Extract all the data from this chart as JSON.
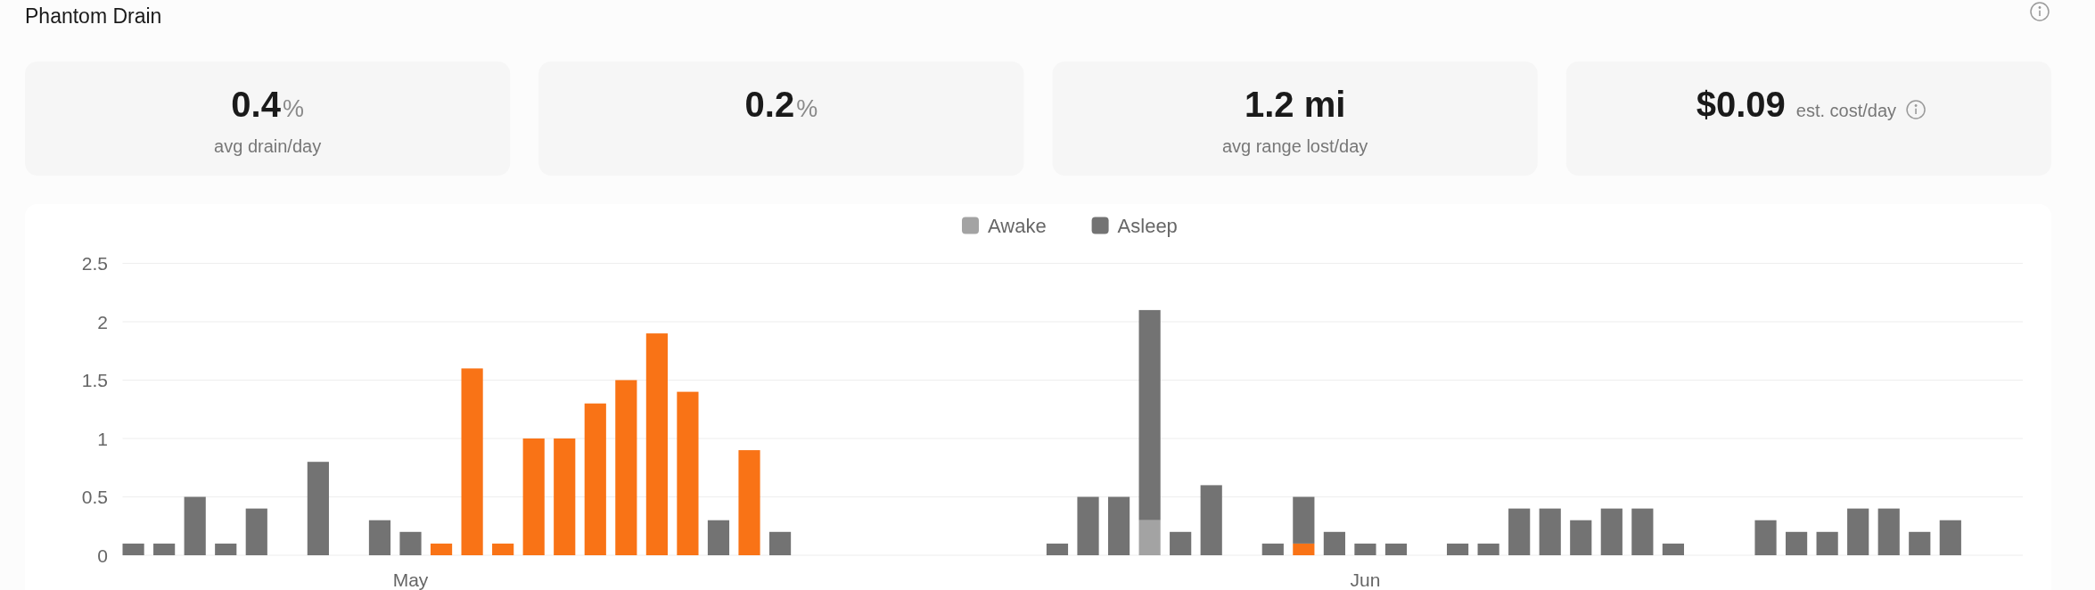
{
  "chart_data": [
    {
      "type": "other",
      "title": "Phantom Drain",
      "categories": [
        "avg drain/day",
        null,
        "avg range lost/day",
        "est. cost/day"
      ],
      "value_labels": [
        "0.4%",
        "0.2%",
        "1.2 mi",
        "$0.09"
      ]
    },
    {
      "type": "bar",
      "stacked": true,
      "categories": [
        null,
        null,
        null,
        null,
        null,
        null,
        null,
        null,
        null,
        "May",
        null,
        null,
        null,
        null,
        null,
        null,
        null,
        null,
        null,
        null,
        null,
        null,
        null,
        null,
        null,
        null,
        null,
        null,
        null,
        null,
        null,
        null,
        null,
        null,
        null,
        null,
        null,
        null,
        null,
        null,
        "Jun",
        null,
        null,
        null,
        null,
        null,
        null,
        null,
        null,
        null,
        null,
        null,
        null,
        null,
        null,
        null,
        null,
        null,
        null,
        null,
        null,
        null
      ],
      "series": [
        {
          "color": "#f97316",
          "values": [
            null,
            null,
            null,
            null,
            null,
            null,
            null,
            null,
            null,
            null,
            0.1,
            1.6,
            0.1,
            1,
            1,
            1.3,
            1.5,
            1.9,
            1.4,
            null,
            0.9,
            null,
            null,
            null,
            null,
            null,
            null,
            null,
            null,
            null,
            null,
            null,
            null,
            null,
            null,
            null,
            null,
            null,
            0.1,
            null,
            null,
            null,
            null,
            null,
            null,
            null,
            null,
            null,
            null,
            null,
            null,
            null,
            null,
            null,
            null,
            null,
            null,
            null,
            null,
            null,
            null,
            null
          ]
        },
        {
          "name": "Awake",
          "color": "#a3a3a3",
          "values": [
            null,
            null,
            null,
            null,
            null,
            null,
            null,
            null,
            null,
            null,
            null,
            null,
            null,
            null,
            null,
            null,
            null,
            null,
            null,
            null,
            null,
            null,
            null,
            null,
            null,
            null,
            null,
            null,
            null,
            null,
            null,
            null,
            null,
            0.3,
            null,
            null,
            null,
            null,
            null,
            null,
            null,
            null,
            null,
            null,
            null,
            null,
            null,
            null,
            null,
            null,
            null,
            null,
            null,
            null,
            null,
            null,
            null,
            null,
            null,
            null,
            null,
            null
          ]
        },
        {
          "name": "Asleep",
          "color": "#737373",
          "values": [
            0.1,
            0.1,
            0.5,
            0.1,
            0.4,
            null,
            0.8,
            null,
            0.3,
            0.2,
            null,
            null,
            null,
            null,
            null,
            null,
            null,
            null,
            null,
            0.3,
            null,
            0.2,
            null,
            null,
            null,
            null,
            null,
            null,
            null,
            null,
            0.1,
            0.5,
            0.5,
            1.8,
            0.2,
            0.6,
            null,
            0.1,
            0.4,
            0.2,
            0.1,
            0.1,
            null,
            0.1,
            0.1,
            0.4,
            0.4,
            0.3,
            0.4,
            0.4,
            0.1,
            null,
            null,
            0.3,
            0.2,
            0.2,
            0.4,
            0.4,
            0.2,
            0.3,
            null,
            null
          ]
        }
      ],
      "ylim": [
        0,
        2.5
      ],
      "yticks": [
        0,
        0.5,
        1,
        1.5,
        2,
        2.5
      ],
      "grid": "y",
      "legend": "top"
    }
  ]
}
